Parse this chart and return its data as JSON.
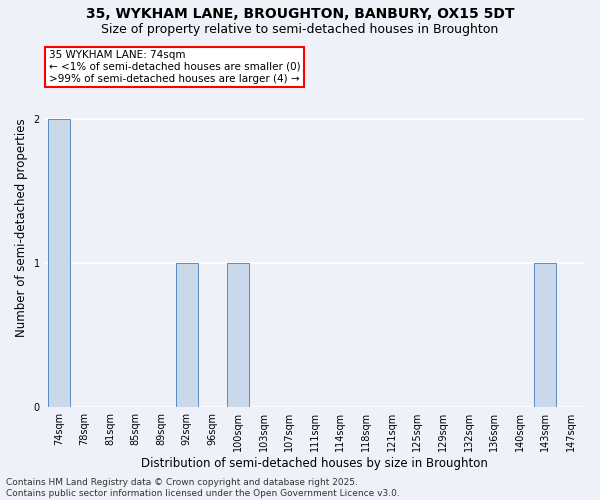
{
  "title1": "35, WYKHAM LANE, BROUGHTON, BANBURY, OX15 5DT",
  "title2": "Size of property relative to semi-detached houses in Broughton",
  "xlabel": "Distribution of semi-detached houses by size in Broughton",
  "ylabel": "Number of semi-detached properties",
  "categories": [
    "74sqm",
    "78sqm",
    "81sqm",
    "85sqm",
    "89sqm",
    "92sqm",
    "96sqm",
    "100sqm",
    "103sqm",
    "107sqm",
    "111sqm",
    "114sqm",
    "118sqm",
    "121sqm",
    "125sqm",
    "129sqm",
    "132sqm",
    "136sqm",
    "140sqm",
    "143sqm",
    "147sqm"
  ],
  "values": [
    2,
    0,
    0,
    0,
    0,
    1,
    0,
    1,
    0,
    0,
    0,
    0,
    0,
    0,
    0,
    0,
    0,
    0,
    0,
    1,
    0
  ],
  "bar_color": "#c9d9eb",
  "bar_edge_color": "#5b8cbf",
  "ylim": [
    0,
    2.5
  ],
  "yticks": [
    0,
    1,
    2
  ],
  "annotation_text": "35 WYKHAM LANE: 74sqm\n← <1% of semi-detached houses are smaller (0)\n>99% of semi-detached houses are larger (4) →",
  "footer_text": "Contains HM Land Registry data © Crown copyright and database right 2025.\nContains public sector information licensed under the Open Government Licence v3.0.",
  "background_color": "#eef2f8",
  "grid_color": "#ffffff",
  "title_fontsize": 10,
  "subtitle_fontsize": 9,
  "axis_label_fontsize": 8.5,
  "tick_fontsize": 7,
  "annot_fontsize": 7.5,
  "footer_fontsize": 6.5
}
